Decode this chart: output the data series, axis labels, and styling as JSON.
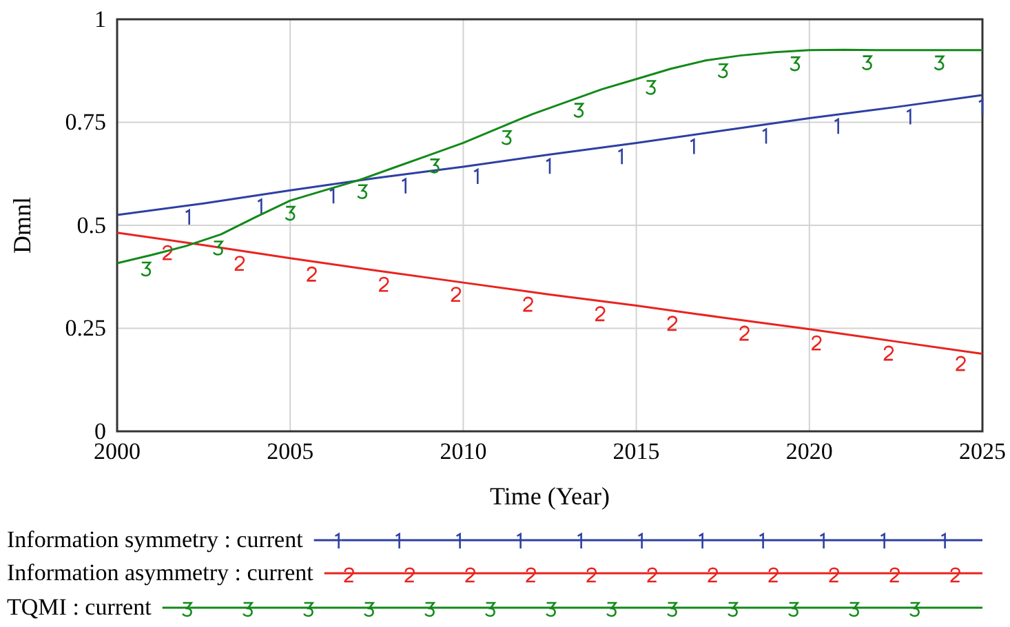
{
  "chart_data": {
    "type": "line",
    "xlabel": "Time (Year)",
    "ylabel": "Dmnl",
    "xlim": [
      2000,
      2025
    ],
    "xticks": [
      2000,
      2005,
      2010,
      2015,
      2020,
      2025
    ],
    "ylim": [
      0,
      1
    ],
    "yticks": [
      0,
      0.25,
      0.5,
      0.75,
      1
    ],
    "grid": true,
    "legend": "bottom",
    "series": [
      {
        "name": "Information symmetry : current",
        "color": "#2e3fa3",
        "x": [
          2000,
          2002.5,
          2005,
          2007.5,
          2010,
          2012.5,
          2015,
          2017.5,
          2020,
          2022.5,
          2025
        ],
        "values": [
          0.525,
          0.553,
          0.585,
          0.615,
          0.642,
          0.672,
          0.7,
          0.73,
          0.76,
          0.787,
          0.816
        ]
      },
      {
        "name": "Information asymmetry : current",
        "color": "#e8231f",
        "x": [
          2000,
          2002.5,
          2005,
          2007.5,
          2010,
          2012.5,
          2015,
          2017.5,
          2020,
          2022.5,
          2025
        ],
        "values": [
          0.482,
          0.452,
          0.42,
          0.39,
          0.361,
          0.332,
          0.305,
          0.276,
          0.248,
          0.218,
          0.188
        ]
      },
      {
        "name": "TQMI : current",
        "color": "#13891a",
        "x": [
          2000,
          2001,
          2002,
          2003,
          2004,
          2005,
          2006,
          2007,
          2008,
          2009,
          2010,
          2011,
          2012,
          2013,
          2014,
          2015,
          2016,
          2017,
          2018,
          2019,
          2020,
          2021,
          2022,
          2023,
          2024,
          2025
        ],
        "values": [
          0.408,
          0.428,
          0.45,
          0.478,
          0.52,
          0.56,
          0.585,
          0.61,
          0.64,
          0.67,
          0.7,
          0.735,
          0.77,
          0.8,
          0.83,
          0.855,
          0.88,
          0.9,
          0.912,
          0.92,
          0.925,
          0.926,
          0.925,
          0.925,
          0.925,
          0.925
        ]
      }
    ]
  }
}
